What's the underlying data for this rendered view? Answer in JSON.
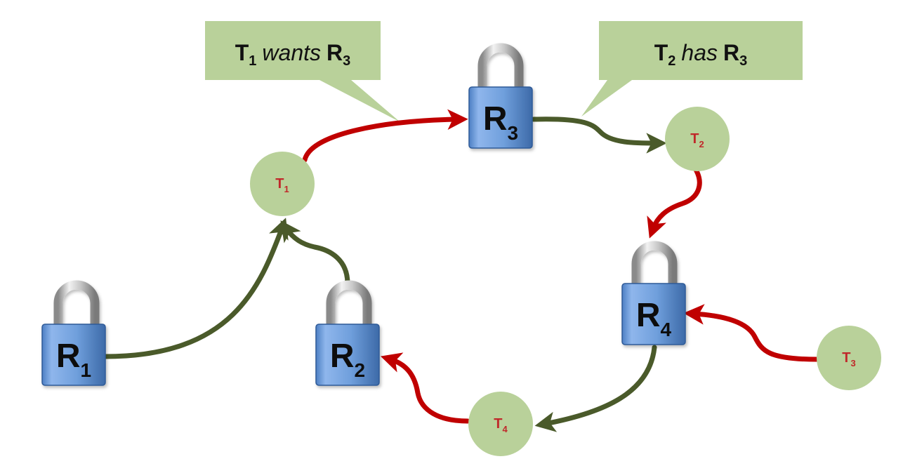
{
  "callouts": [
    {
      "id": "t1-wants-r3",
      "subject": "T",
      "subject_sub": "1",
      "verb": "wants",
      "object": "R",
      "object_sub": "3"
    },
    {
      "id": "t2-has-r3",
      "subject": "T",
      "subject_sub": "2",
      "verb": "has",
      "object": "R",
      "object_sub": "3"
    }
  ],
  "locks": [
    {
      "id": "r1",
      "letter": "R",
      "sub": "1"
    },
    {
      "id": "r2",
      "letter": "R",
      "sub": "2"
    },
    {
      "id": "r3",
      "letter": "R",
      "sub": "3"
    },
    {
      "id": "r4",
      "letter": "R",
      "sub": "4"
    }
  ],
  "threads": [
    {
      "id": "t1",
      "letter": "T",
      "sub": "1"
    },
    {
      "id": "t2",
      "letter": "T",
      "sub": "2"
    },
    {
      "id": "t3",
      "letter": "T",
      "sub": "3"
    },
    {
      "id": "t4",
      "letter": "T",
      "sub": "4"
    }
  ],
  "edges": [
    {
      "id": "t1-to-r3",
      "from": "T1",
      "to": "R3",
      "kind": "wants"
    },
    {
      "id": "r3-to-t2",
      "from": "R3",
      "to": "T2",
      "kind": "has"
    },
    {
      "id": "t2-to-r4",
      "from": "T2",
      "to": "R4",
      "kind": "wants"
    },
    {
      "id": "t3-to-r4",
      "from": "T3",
      "to": "R4",
      "kind": "wants"
    },
    {
      "id": "r4-to-t4",
      "from": "R4",
      "to": "T4",
      "kind": "has"
    },
    {
      "id": "t4-to-r2",
      "from": "T4",
      "to": "R2",
      "kind": "wants"
    },
    {
      "id": "r2-to-t1",
      "from": "R2",
      "to": "T1",
      "kind": "has"
    },
    {
      "id": "r1-to-t1",
      "from": "R1",
      "to": "T1",
      "kind": "has"
    }
  ],
  "colors": {
    "wants_edge": "#c00000",
    "has_edge": "#4a5a2a",
    "thread_fill": "#b9d19a",
    "callout_fill": "#b9d19a",
    "lock_body": "#6f9fdc",
    "thread_label": "#c0282a"
  }
}
